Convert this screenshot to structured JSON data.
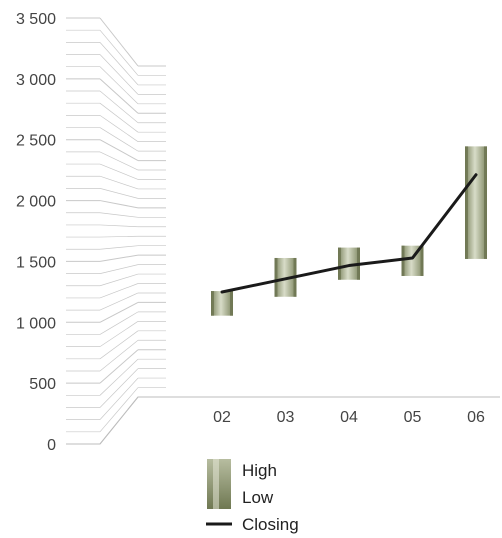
{
  "chart_data": {
    "type": "candlestick",
    "categories": [
      "02",
      "03",
      "04",
      "05",
      "06"
    ],
    "series": [
      {
        "name": "High",
        "values": [
          1120,
          1470,
          1580,
          1600,
          2650
        ]
      },
      {
        "name": "Low",
        "values": [
          860,
          1060,
          1240,
          1280,
          1460
        ]
      },
      {
        "name": "Closing",
        "values": [
          1110,
          1250,
          1390,
          1470,
          2350
        ]
      }
    ],
    "y_ticks": [
      "0",
      "500",
      "1 000",
      "1 500",
      "2 000",
      "2 500",
      "3 000",
      "3 500"
    ],
    "ylim": [
      0,
      3500
    ],
    "title": "",
    "xlabel": "",
    "ylabel": "",
    "grid": true,
    "legend_position": "bottom",
    "colors": {
      "bar_dark": "#7d8660",
      "bar_light": "#d4d8c3",
      "line": "#1a1a1a",
      "grid": "#c8c8c8",
      "wall": "#d9d9d9"
    }
  },
  "legend": {
    "high": "High",
    "low": "Low",
    "closing": "Closing"
  }
}
